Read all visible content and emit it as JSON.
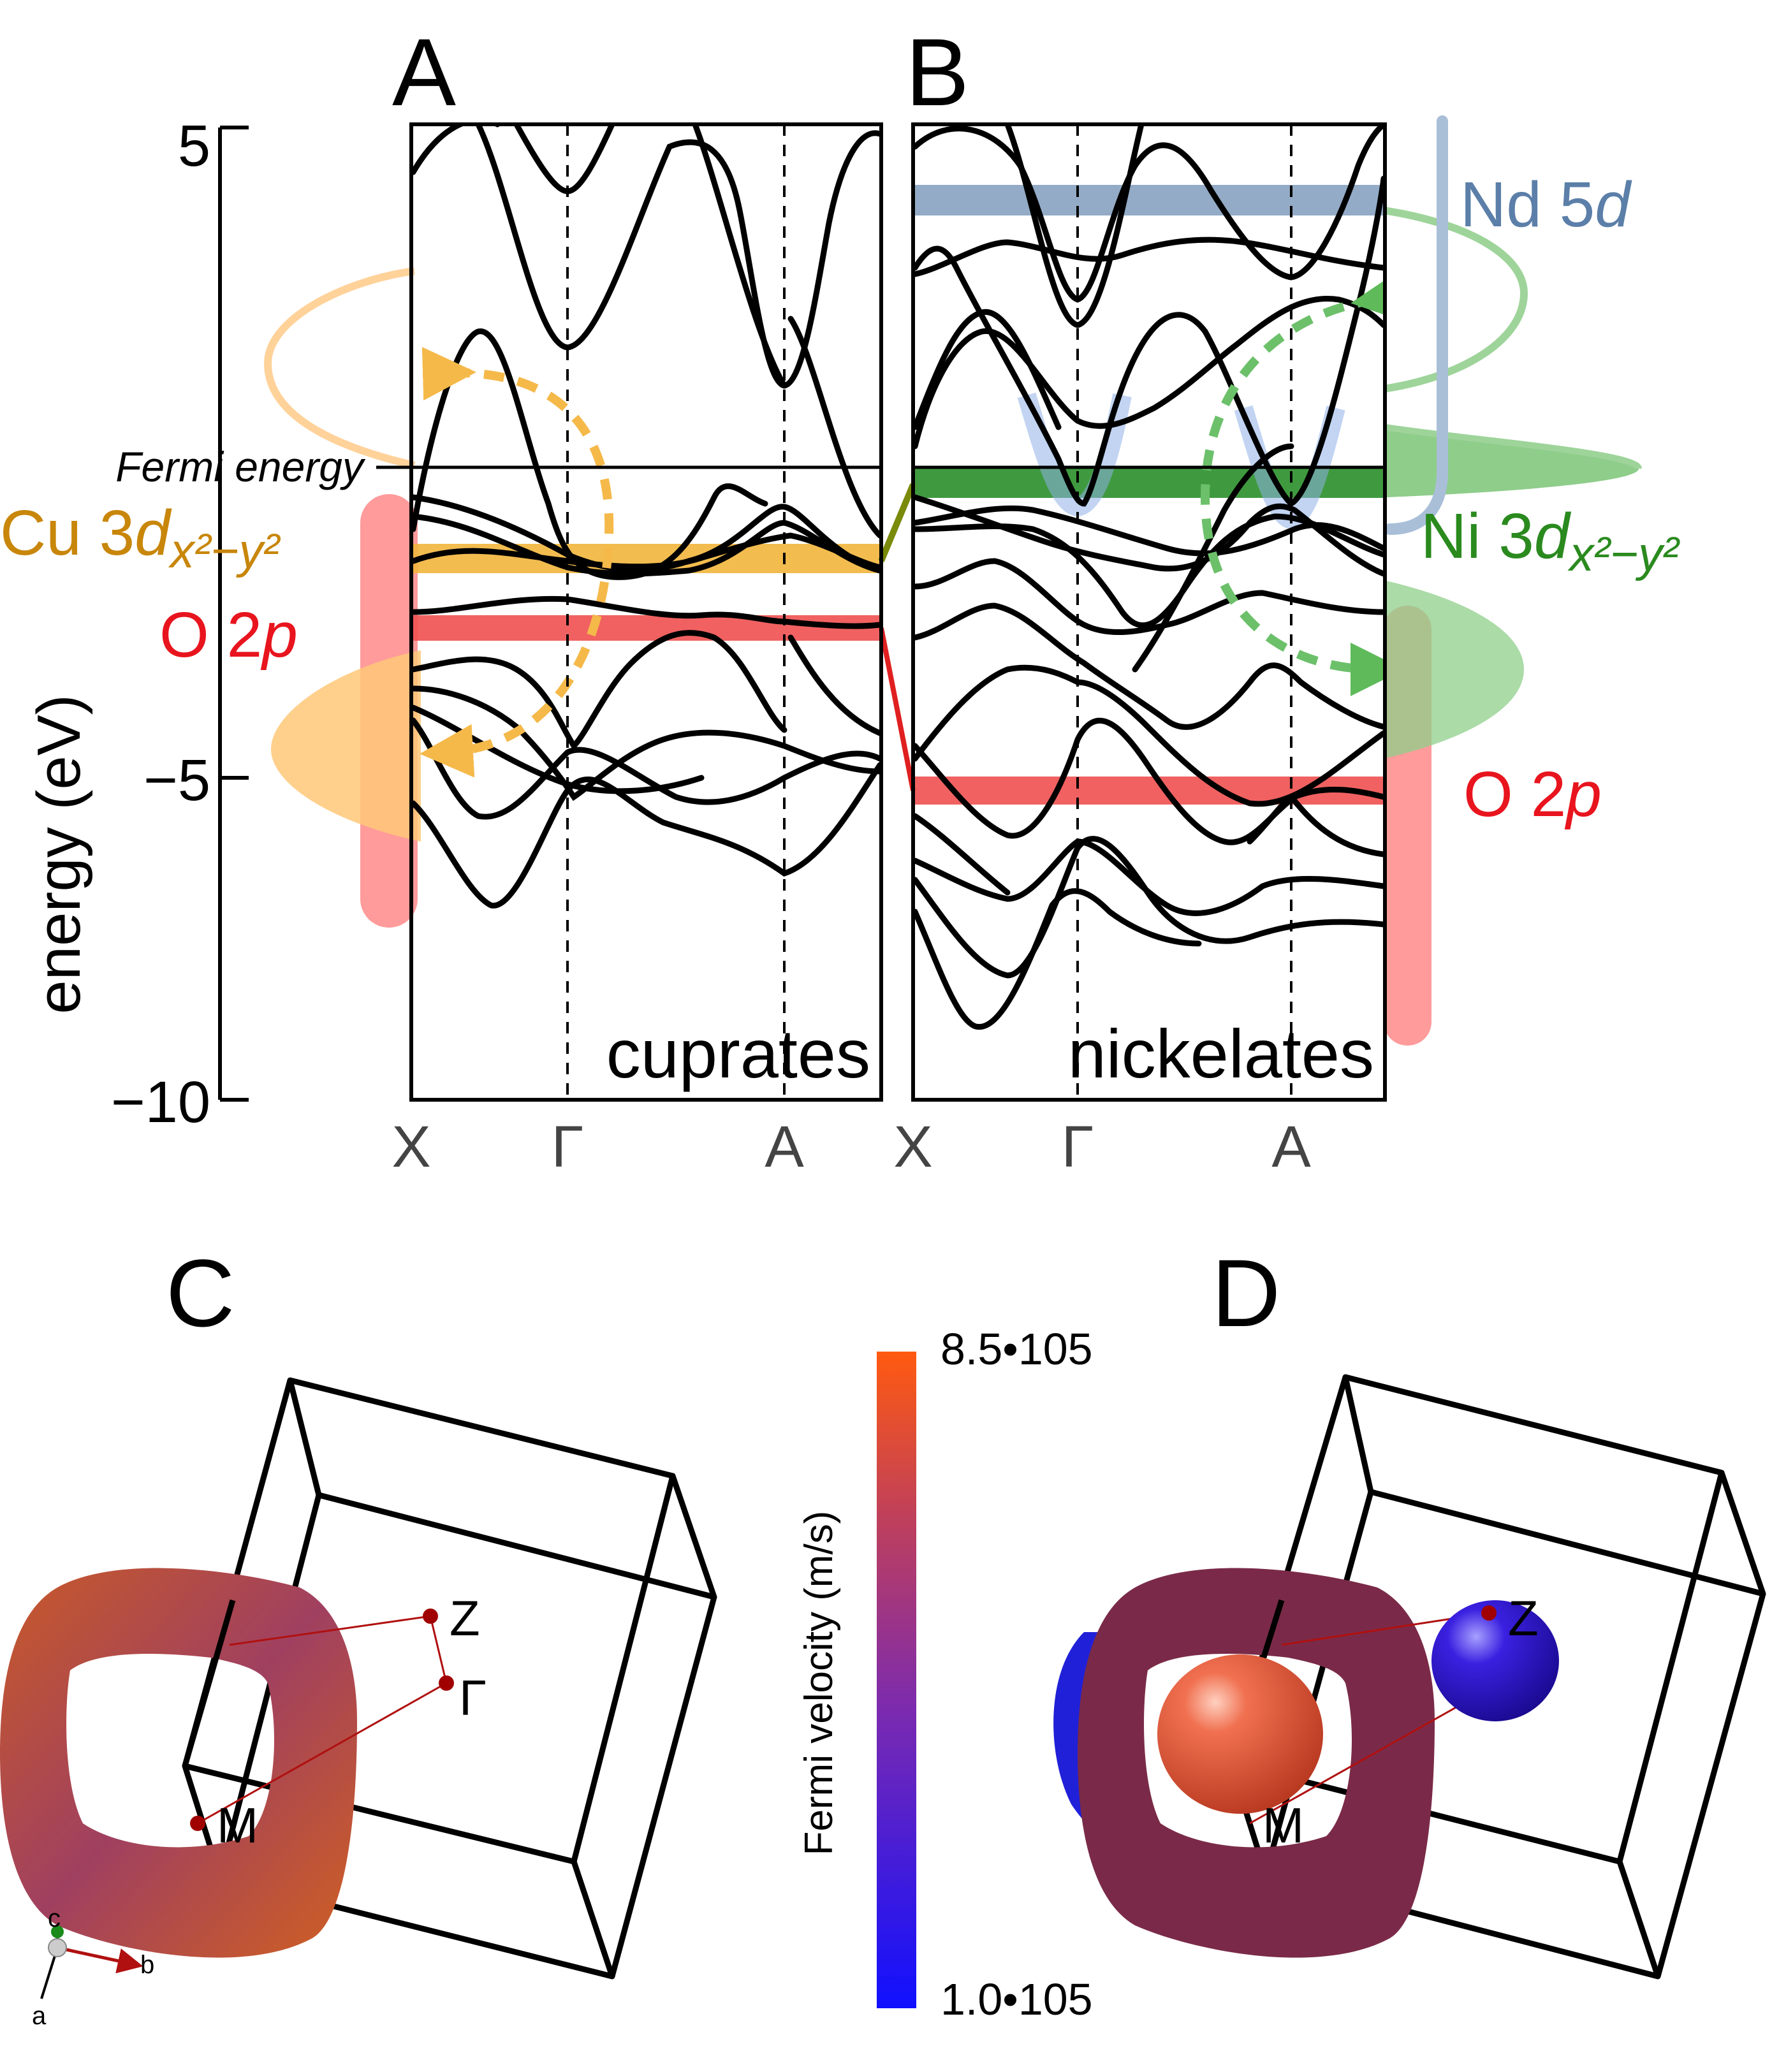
{
  "panels": {
    "A": {
      "letter": "A",
      "material": "cuprates"
    },
    "B": {
      "letter": "B",
      "material": "nickelates"
    },
    "C": {
      "letter": "C"
    },
    "D": {
      "letter": "D"
    }
  },
  "axis": {
    "ylabel": "energy (eV)",
    "ticks": [
      "5",
      "−5",
      "−10"
    ],
    "fermi_label": "Fermi energy"
  },
  "kpath": [
    "X",
    "Γ",
    "A",
    "X",
    "Γ",
    "A"
  ],
  "orbitals": {
    "cu_prefix": "Cu 3",
    "cu_d": "d",
    "cu_sub": "x²−y²",
    "o2p_left_prefix": "O 2",
    "o2p_left_p": "p",
    "nd_prefix": "Nd 5",
    "nd_d": "d",
    "ni_prefix": "Ni 3",
    "ni_d": "d",
    "ni_sub": "x²−y²",
    "o2p_right_prefix": "O 2",
    "o2p_right_p": "p"
  },
  "bz_labels": {
    "Z": "Z",
    "Gamma": "Γ",
    "M": "M",
    "axis_a": "a",
    "axis_b": "b",
    "axis_c": "c"
  },
  "colorbar": {
    "label": "Fermi velocity (m/s)",
    "max_label": "8.5•105",
    "min_label": "1.0•105",
    "max_value": 850000,
    "min_value": 100000
  },
  "colors": {
    "cu": "#c8860a",
    "ni": "#2a8a1e",
    "nd": "#5b7fa8",
    "o": "#e8141e",
    "cu_fill": "#ffc870",
    "ni_fill": "#6dba6a",
    "o_fill": "#ff8080"
  },
  "chart_data": [
    {
      "type": "line",
      "title": "cuprates",
      "ylabel": "energy (eV)",
      "ylim": [
        -10,
        5
      ],
      "yticks": [
        5,
        -5,
        -10
      ],
      "x_ticks": [
        "X",
        "Γ",
        "A"
      ],
      "fermi_energy_eV": 0,
      "orbital_levels_eV": {
        "Cu 3dx²−y²": -1.4,
        "O 2p": -2.6
      },
      "series_count": 12
    },
    {
      "type": "line",
      "title": "nickelates",
      "ylabel": "energy (eV)",
      "ylim": [
        -10,
        5
      ],
      "x_ticks": [
        "X",
        "Γ",
        "A"
      ],
      "fermi_energy_eV": 0,
      "orbital_levels_eV": {
        "Nd 5d": 4.1,
        "Ni 3dx²−y²": -0.3,
        "O 2p": -5.2
      },
      "series_count": 14
    }
  ]
}
